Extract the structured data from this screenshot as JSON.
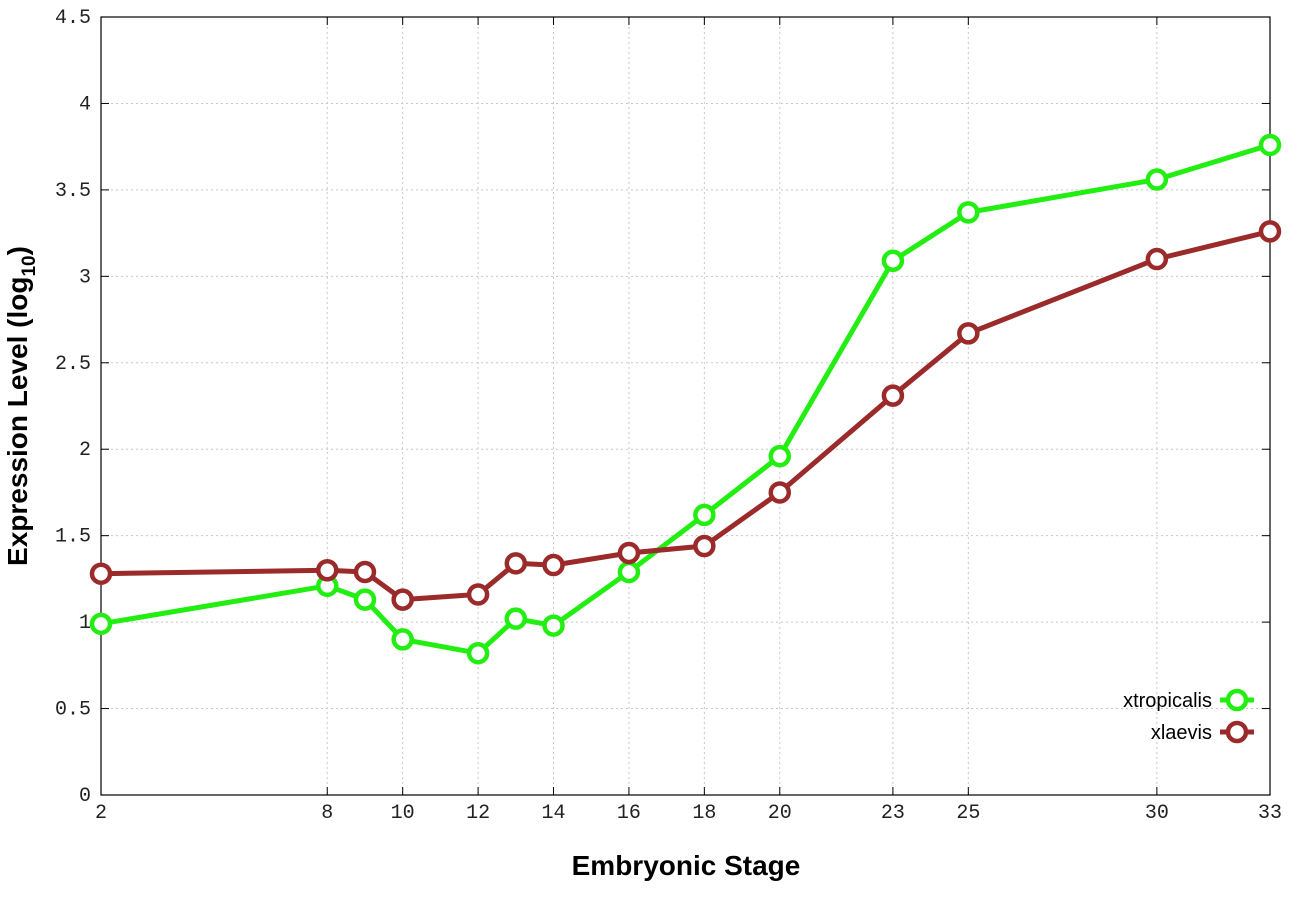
{
  "chart_data": {
    "type": "line",
    "xlabel": "Embryonic Stage",
    "ylabel": "Expression Level (log",
    "ylabel_sub": "10",
    "ylabel_close": ")",
    "xlim": [
      2,
      33
    ],
    "ylim": [
      0,
      4.5
    ],
    "x_ticks": [
      2,
      8,
      10,
      12,
      14,
      16,
      18,
      20,
      23,
      25,
      30,
      33
    ],
    "y_ticks": [
      0,
      0.5,
      1,
      1.5,
      2,
      2.5,
      3,
      3.5,
      4,
      4.5
    ],
    "grid": true,
    "legend_position": "bottom-right",
    "x": [
      2,
      8,
      9,
      10,
      12,
      13,
      14,
      16,
      18,
      20,
      23,
      25,
      30,
      33
    ],
    "series": [
      {
        "name": "xtropicalis",
        "color": "#22ee11",
        "values": [
          0.99,
          1.21,
          1.13,
          0.9,
          0.82,
          1.02,
          0.98,
          1.29,
          1.62,
          1.96,
          3.09,
          3.37,
          3.56,
          3.76
        ]
      },
      {
        "name": "xlaevis",
        "color": "#9b2a2a",
        "values": [
          1.28,
          1.3,
          1.29,
          1.13,
          1.16,
          1.34,
          1.33,
          1.4,
          1.44,
          1.75,
          2.31,
          2.67,
          3.1,
          3.26
        ]
      }
    ]
  }
}
